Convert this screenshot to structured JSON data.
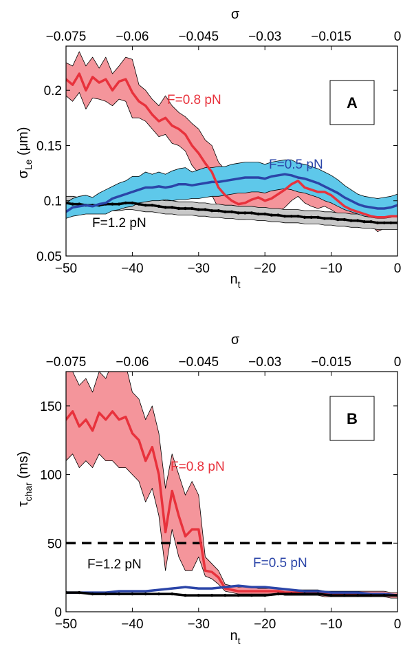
{
  "chart_data": [
    {
      "type": "line",
      "panel_label": "A",
      "xlabel": "n",
      "xlabel_sub": "t",
      "x2label": "σ",
      "ylabel": "σ",
      "ylabel_sub": "Le",
      "ylabel_unit": " (μm)",
      "xlim": [
        -50,
        0
      ],
      "ylim": [
        0.05,
        0.24
      ],
      "x2lim": [
        -0.075,
        0
      ],
      "xticks": [
        "−50",
        "−40",
        "−30",
        "−20",
        "−10",
        "0"
      ],
      "xtick_values": [
        -50,
        -40,
        -30,
        -20,
        -10,
        0
      ],
      "x2ticks": [
        "−0.075",
        "−0.06",
        "−0.045",
        "−0.03",
        "−0.015",
        "0"
      ],
      "x2tick_values": [
        -0.075,
        -0.06,
        -0.045,
        -0.03,
        -0.015,
        0
      ],
      "yticks": [
        "0.05",
        "0.1",
        "0.15",
        "0.2"
      ],
      "ytick_values": [
        0.05,
        0.1,
        0.15,
        0.2
      ],
      "series": [
        {
          "name": "F=0.8 pN",
          "color": "#e8323c",
          "band_color": "#f4959b",
          "x": [
            -50,
            -49,
            -48,
            -47,
            -46,
            -45,
            -44,
            -43,
            -42,
            -41,
            -40,
            -39,
            -38,
            -37,
            -36,
            -35,
            -34,
            -33,
            -32,
            -31,
            -30,
            -29,
            -28,
            -27,
            -26,
            -25,
            -24,
            -23,
            -22,
            -21,
            -20,
            -19,
            -18,
            -17,
            -16,
            -15,
            -14,
            -13,
            -12,
            -11,
            -10,
            -9,
            -8,
            -7,
            -6,
            -5,
            -4,
            -3,
            -2,
            -1,
            0
          ],
          "y": [
            0.21,
            0.205,
            0.215,
            0.2,
            0.212,
            0.207,
            0.21,
            0.2,
            0.208,
            0.21,
            0.198,
            0.19,
            0.186,
            0.178,
            0.172,
            0.175,
            0.168,
            0.165,
            0.16,
            0.15,
            0.143,
            0.134,
            0.126,
            0.112,
            0.105,
            0.1,
            0.097,
            0.098,
            0.101,
            0.103,
            0.1,
            0.102,
            0.106,
            0.11,
            0.115,
            0.118,
            0.112,
            0.11,
            0.108,
            0.108,
            0.105,
            0.1,
            0.095,
            0.092,
            0.09,
            0.088,
            0.086,
            0.085,
            0.085,
            0.086,
            0.086
          ],
          "upper": [
            0.225,
            0.222,
            0.235,
            0.222,
            0.23,
            0.22,
            0.23,
            0.215,
            0.222,
            0.23,
            0.228,
            0.205,
            0.2,
            0.192,
            0.186,
            0.195,
            0.186,
            0.18,
            0.176,
            0.17,
            0.165,
            0.155,
            0.15,
            0.135,
            0.128,
            0.118,
            0.113,
            0.118,
            0.12,
            0.122,
            0.118,
            0.122,
            0.126,
            0.128,
            0.13,
            0.13,
            0.126,
            0.124,
            0.122,
            0.12,
            0.118,
            0.112,
            0.105,
            0.1,
            0.098,
            0.096,
            0.094,
            0.093,
            0.093,
            0.094,
            0.094
          ],
          "lower": [
            0.195,
            0.19,
            0.198,
            0.183,
            0.193,
            0.192,
            0.19,
            0.186,
            0.192,
            0.19,
            0.175,
            0.175,
            0.172,
            0.165,
            0.158,
            0.16,
            0.152,
            0.15,
            0.145,
            0.132,
            0.125,
            0.116,
            0.105,
            0.093,
            0.088,
            0.085,
            0.083,
            0.083,
            0.085,
            0.088,
            0.085,
            0.085,
            0.09,
            0.094,
            0.1,
            0.104,
            0.098,
            0.095,
            0.093,
            0.095,
            0.092,
            0.088,
            0.085,
            0.083,
            0.082,
            0.08,
            0.078,
            0.072,
            0.075,
            0.078,
            0.078
          ]
        },
        {
          "name": "F=0.5 pN",
          "color": "#2b45a8",
          "band_color": "#5ec8ea",
          "x": [
            -50,
            -49,
            -48,
            -47,
            -46,
            -45,
            -44,
            -43,
            -42,
            -41,
            -40,
            -39,
            -38,
            -37,
            -36,
            -35,
            -34,
            -33,
            -32,
            -31,
            -30,
            -29,
            -28,
            -27,
            -26,
            -25,
            -24,
            -23,
            -22,
            -21,
            -20,
            -19,
            -18,
            -17,
            -16,
            -15,
            -14,
            -13,
            -12,
            -11,
            -10,
            -9,
            -8,
            -7,
            -6,
            -5,
            -4,
            -3,
            -2,
            -1,
            0
          ],
          "y": [
            0.09,
            0.094,
            0.095,
            0.096,
            0.095,
            0.097,
            0.098,
            0.102,
            0.104,
            0.106,
            0.108,
            0.11,
            0.112,
            0.112,
            0.113,
            0.112,
            0.113,
            0.115,
            0.115,
            0.114,
            0.115,
            0.116,
            0.117,
            0.117,
            0.118,
            0.119,
            0.12,
            0.121,
            0.121,
            0.121,
            0.12,
            0.122,
            0.123,
            0.124,
            0.123,
            0.121,
            0.12,
            0.118,
            0.116,
            0.113,
            0.11,
            0.107,
            0.103,
            0.1,
            0.097,
            0.095,
            0.094,
            0.093,
            0.093,
            0.094,
            0.096
          ],
          "upper": [
            0.098,
            0.102,
            0.104,
            0.105,
            0.103,
            0.107,
            0.11,
            0.113,
            0.116,
            0.118,
            0.122,
            0.122,
            0.126,
            0.124,
            0.126,
            0.124,
            0.127,
            0.129,
            0.13,
            0.126,
            0.128,
            0.13,
            0.13,
            0.131,
            0.131,
            0.133,
            0.134,
            0.135,
            0.135,
            0.135,
            0.133,
            0.135,
            0.136,
            0.137,
            0.137,
            0.134,
            0.133,
            0.131,
            0.129,
            0.126,
            0.123,
            0.119,
            0.114,
            0.11,
            0.106,
            0.104,
            0.103,
            0.102,
            0.103,
            0.104,
            0.106
          ],
          "lower": [
            0.084,
            0.086,
            0.087,
            0.088,
            0.088,
            0.088,
            0.088,
            0.091,
            0.092,
            0.094,
            0.095,
            0.098,
            0.099,
            0.1,
            0.1,
            0.101,
            0.1,
            0.101,
            0.101,
            0.102,
            0.102,
            0.103,
            0.104,
            0.104,
            0.105,
            0.106,
            0.107,
            0.107,
            0.108,
            0.108,
            0.107,
            0.109,
            0.11,
            0.111,
            0.11,
            0.108,
            0.107,
            0.105,
            0.103,
            0.1,
            0.098,
            0.095,
            0.092,
            0.09,
            0.088,
            0.086,
            0.085,
            0.084,
            0.084,
            0.085,
            0.086
          ]
        },
        {
          "name": "F=1.2 pN",
          "color": "#000000",
          "band_color": "#c8c8c8",
          "x": [
            -50,
            -49,
            -48,
            -47,
            -46,
            -45,
            -44,
            -43,
            -42,
            -41,
            -40,
            -39,
            -38,
            -37,
            -36,
            -35,
            -34,
            -33,
            -32,
            -31,
            -30,
            -29,
            -28,
            -27,
            -26,
            -25,
            -24,
            -23,
            -22,
            -21,
            -20,
            -19,
            -18,
            -17,
            -16,
            -15,
            -14,
            -13,
            -12,
            -11,
            -10,
            -9,
            -8,
            -7,
            -6,
            -5,
            -4,
            -3,
            -2,
            -1,
            0
          ],
          "y": [
            0.098,
            0.097,
            0.097,
            0.096,
            0.096,
            0.096,
            0.097,
            0.097,
            0.097,
            0.098,
            0.098,
            0.097,
            0.096,
            0.096,
            0.095,
            0.094,
            0.094,
            0.093,
            0.093,
            0.093,
            0.092,
            0.092,
            0.091,
            0.091,
            0.09,
            0.09,
            0.089,
            0.089,
            0.089,
            0.088,
            0.088,
            0.087,
            0.087,
            0.086,
            0.086,
            0.086,
            0.085,
            0.085,
            0.085,
            0.084,
            0.084,
            0.083,
            0.083,
            0.082,
            0.082,
            0.081,
            0.081,
            0.08,
            0.08,
            0.08,
            0.08
          ],
          "upper": [
            0.104,
            0.104,
            0.103,
            0.102,
            0.102,
            0.102,
            0.103,
            0.103,
            0.103,
            0.104,
            0.104,
            0.103,
            0.102,
            0.102,
            0.101,
            0.1,
            0.1,
            0.099,
            0.099,
            0.099,
            0.098,
            0.098,
            0.097,
            0.097,
            0.096,
            0.096,
            0.095,
            0.095,
            0.095,
            0.094,
            0.094,
            0.093,
            0.093,
            0.092,
            0.092,
            0.092,
            0.091,
            0.091,
            0.091,
            0.09,
            0.09,
            0.089,
            0.089,
            0.088,
            0.088,
            0.087,
            0.087,
            0.086,
            0.086,
            0.086,
            0.086
          ],
          "lower": [
            0.092,
            0.091,
            0.091,
            0.09,
            0.09,
            0.09,
            0.091,
            0.091,
            0.091,
            0.092,
            0.092,
            0.091,
            0.09,
            0.09,
            0.089,
            0.088,
            0.088,
            0.087,
            0.087,
            0.087,
            0.086,
            0.086,
            0.085,
            0.085,
            0.084,
            0.084,
            0.083,
            0.083,
            0.083,
            0.082,
            0.082,
            0.081,
            0.081,
            0.08,
            0.08,
            0.08,
            0.079,
            0.079,
            0.079,
            0.078,
            0.078,
            0.077,
            0.077,
            0.076,
            0.076,
            0.075,
            0.075,
            0.074,
            0.074,
            0.074,
            0.074
          ]
        }
      ]
    },
    {
      "type": "line",
      "panel_label": "B",
      "xlabel": "n",
      "xlabel_sub": "t",
      "x2label": "σ",
      "ylabel": "τ",
      "ylabel_sub": "char",
      "ylabel_unit": " (ms)",
      "xlim": [
        -50,
        0
      ],
      "ylim": [
        0,
        175
      ],
      "x2lim": [
        -0.075,
        0
      ],
      "xticks": [
        "−50",
        "−40",
        "−30",
        "−20",
        "−10",
        "0"
      ],
      "xtick_values": [
        -50,
        -40,
        -30,
        -20,
        -10,
        0
      ],
      "x2ticks": [
        "−0.075",
        "−0.06",
        "−0.045",
        "−0.03",
        "−0.015",
        "0"
      ],
      "x2tick_values": [
        -0.075,
        -0.06,
        -0.045,
        -0.03,
        -0.015,
        0
      ],
      "yticks": [
        "0",
        "50",
        "100",
        "150"
      ],
      "ytick_values": [
        0,
        50,
        100,
        150
      ],
      "threshold": 50,
      "series": [
        {
          "name": "F=0.8 pN",
          "color": "#e8323c",
          "band_color": "#f4959b",
          "x": [
            -50,
            -49,
            -48,
            -47,
            -46,
            -45,
            -44,
            -43,
            -42,
            -41,
            -40,
            -39,
            -38,
            -37,
            -36,
            -35,
            -34,
            -33,
            -32,
            -31,
            -30,
            -29,
            -28,
            -27,
            -26,
            -25,
            -24,
            -23,
            -22,
            -21,
            -20,
            -19,
            -18,
            -17,
            -16,
            -15,
            -14,
            -13,
            -12,
            -11,
            -10,
            -9,
            -8,
            -7,
            -6,
            -5,
            -4,
            -3,
            -2,
            -1,
            0
          ],
          "y": [
            140,
            146,
            135,
            140,
            132,
            145,
            140,
            146,
            140,
            142,
            130,
            125,
            110,
            120,
            100,
            58,
            88,
            70,
            55,
            60,
            60,
            30,
            29,
            25,
            17,
            16,
            15,
            15,
            15,
            15,
            15,
            15,
            15,
            14,
            14,
            14,
            14,
            14,
            14,
            13,
            13,
            13,
            13,
            13,
            13,
            13,
            13,
            13,
            13,
            12,
            12
          ],
          "upper": [
            180,
            175,
            165,
            170,
            160,
            175,
            170,
            182,
            175,
            180,
            160,
            155,
            140,
            150,
            130,
            90,
            115,
            100,
            85,
            95,
            85,
            40,
            35,
            30,
            20,
            19,
            18,
            18,
            18,
            17,
            17,
            17,
            17,
            16,
            16,
            16,
            16,
            16,
            16,
            15,
            15,
            15,
            15,
            15,
            15,
            15,
            15,
            15,
            15,
            14,
            14
          ],
          "lower": [
            110,
            115,
            105,
            110,
            105,
            115,
            110,
            110,
            105,
            105,
            100,
            95,
            80,
            90,
            70,
            30,
            60,
            40,
            30,
            30,
            40,
            26,
            24,
            20,
            15,
            14,
            13,
            13,
            13,
            13,
            13,
            13,
            13,
            12,
            12,
            12,
            12,
            12,
            12,
            11,
            11,
            11,
            11,
            11,
            11,
            11,
            11,
            11,
            11,
            10,
            10
          ]
        },
        {
          "name": "F=0.5 pN",
          "color": "#2b45a8",
          "band_color": "#5ec8ea",
          "x": [
            -50,
            -48,
            -46,
            -44,
            -42,
            -40,
            -38,
            -36,
            -34,
            -32,
            -30,
            -28,
            -26,
            -24,
            -22,
            -20,
            -18,
            -16,
            -14,
            -12,
            -10,
            -8,
            -6,
            -4,
            -2,
            0
          ],
          "y": [
            14,
            14,
            14,
            14,
            15,
            15,
            15,
            16,
            17,
            18,
            17,
            17,
            18,
            19,
            18,
            18,
            17,
            16,
            15,
            15,
            14,
            14,
            14,
            13,
            13,
            12
          ]
        },
        {
          "name": "F=1.2 pN",
          "color": "#000000",
          "band_color": "#c8c8c8",
          "x": [
            -50,
            -48,
            -46,
            -44,
            -42,
            -40,
            -38,
            -36,
            -34,
            -32,
            -30,
            -28,
            -26,
            -24,
            -22,
            -20,
            -18,
            -16,
            -14,
            -12,
            -10,
            -8,
            -6,
            -4,
            -2,
            0
          ],
          "y": [
            14,
            14,
            13,
            13,
            13,
            13,
            13,
            13,
            13,
            12,
            12,
            12,
            12,
            12,
            12,
            12,
            13,
            13,
            13,
            13,
            12,
            12,
            12,
            12,
            12,
            12
          ]
        }
      ]
    }
  ]
}
